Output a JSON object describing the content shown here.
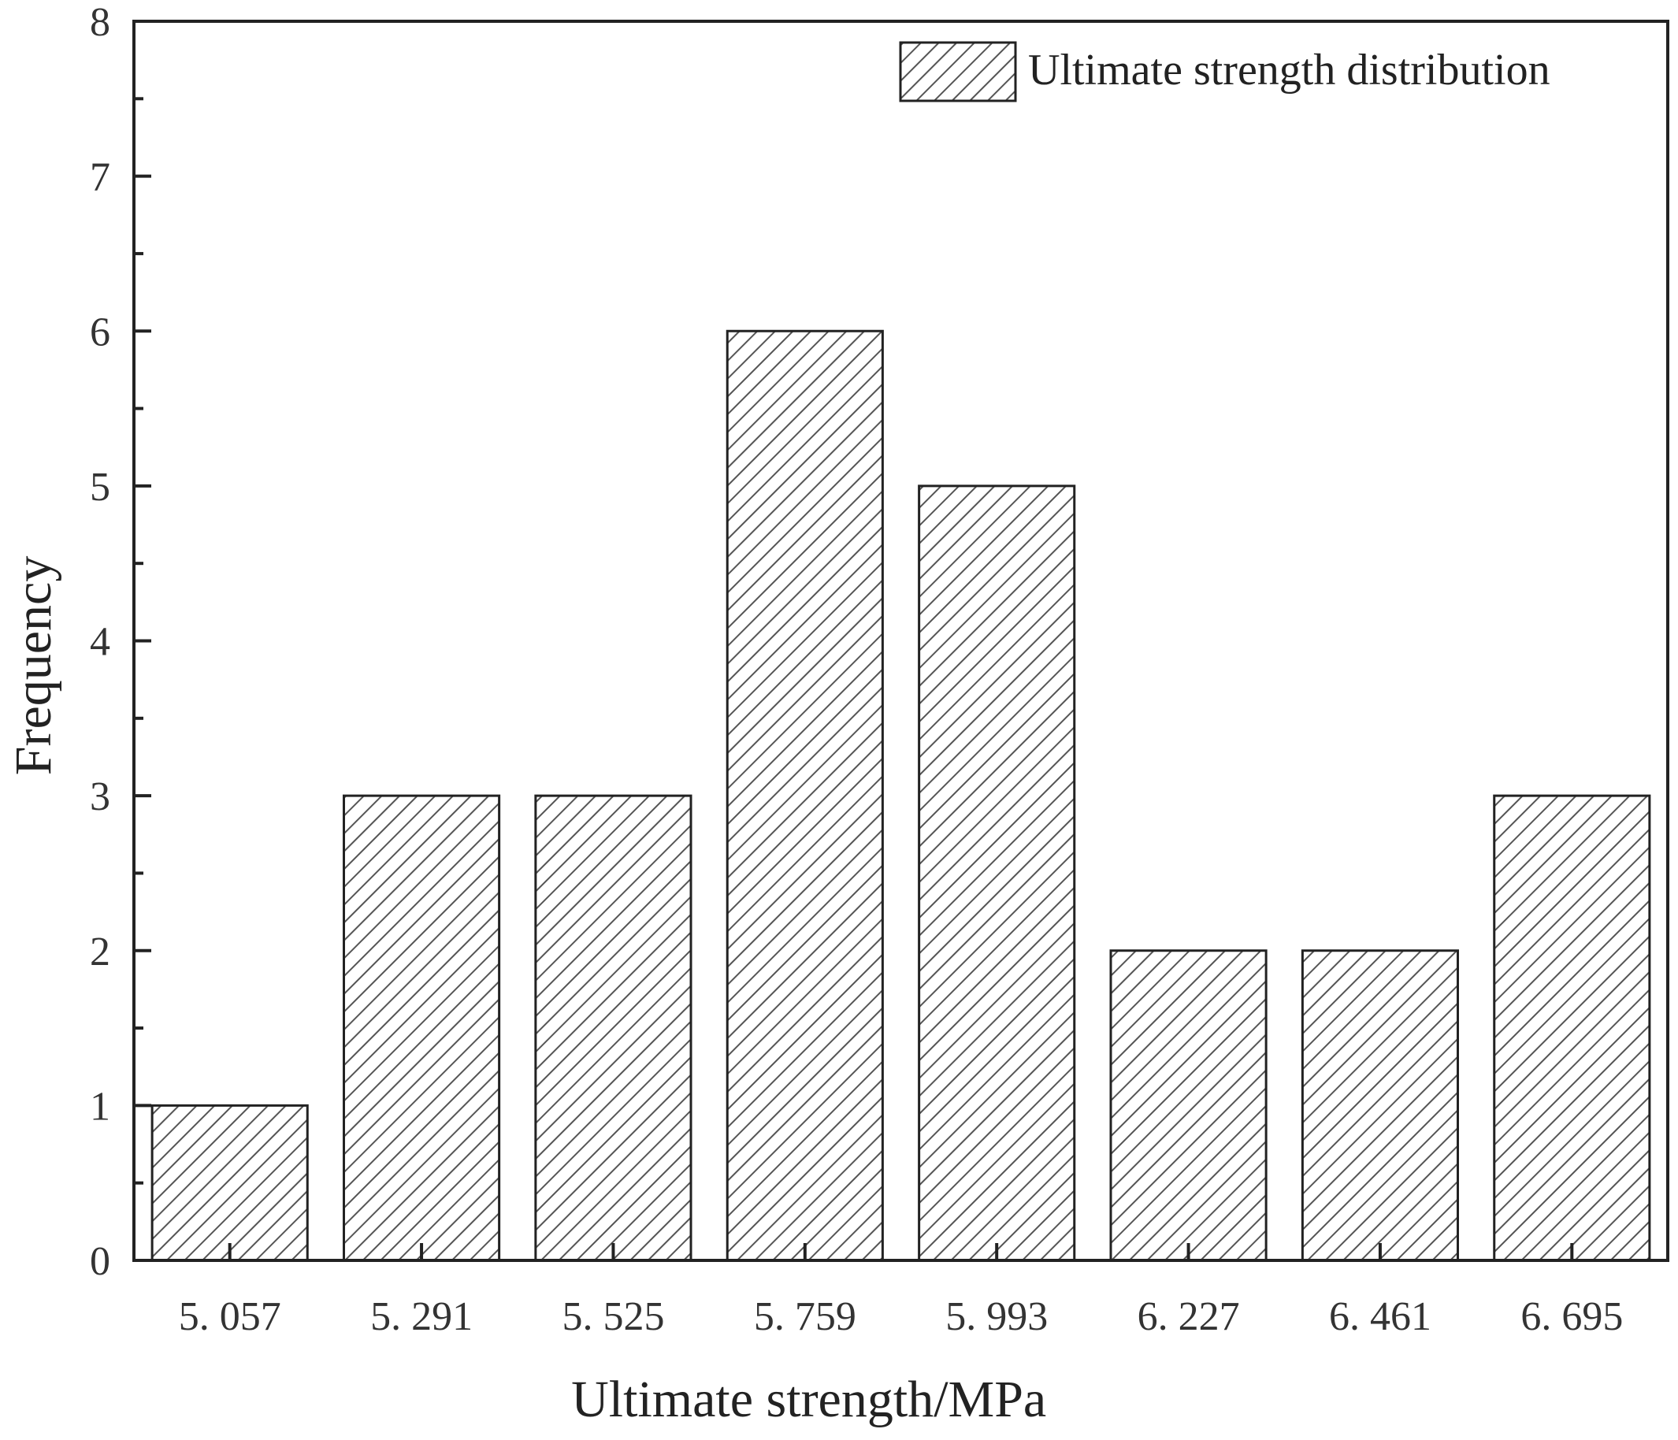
{
  "chart_data": {
    "type": "bar",
    "categories": [
      "5. 057",
      "5. 291",
      "5. 525",
      "5. 759",
      "5. 993",
      "6. 227",
      "6. 461",
      "6. 695"
    ],
    "values": [
      1,
      3,
      3,
      6,
      5,
      2,
      2,
      3
    ],
    "title": "",
    "xlabel": "Ultimate strength/MPa",
    "ylabel": "Frequency",
    "ylim": [
      0,
      8
    ],
    "yticks": [
      0,
      1,
      2,
      3,
      4,
      5,
      6,
      7,
      8
    ],
    "grid": false,
    "legend": {
      "position": "top-right",
      "entries": [
        "Ultimate strength distribution"
      ]
    },
    "colors": {
      "bar_fill": "#ffffff",
      "hatch": "#555555",
      "stroke": "#222222",
      "tick_zero": "#c08a00"
    }
  }
}
